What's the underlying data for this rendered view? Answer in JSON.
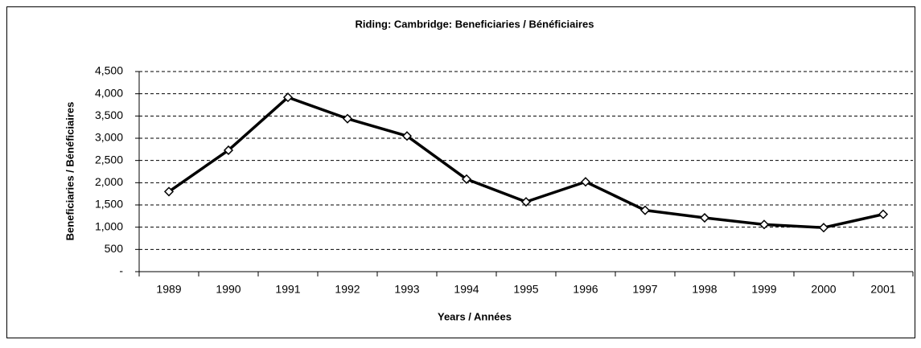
{
  "chart_data": {
    "type": "line",
    "title": "Riding:  Cambridge:  Beneficiaries / Bénéficiaires",
    "x_label": "Years / Années",
    "y_label": "Beneficiaries / Bénéficiaires",
    "categories": [
      "1989",
      "1990",
      "1991",
      "1992",
      "1993",
      "1994",
      "1995",
      "1996",
      "1997",
      "1998",
      "1999",
      "2000",
      "2001"
    ],
    "series": [
      {
        "name": "Beneficiaries / Bénéficiaires",
        "color": "#000000",
        "values": [
          1800,
          2730,
          3920,
          3440,
          3050,
          2080,
          1570,
          2020,
          1380,
          1210,
          1060,
          990,
          1290
        ]
      }
    ],
    "ylim": [
      0,
      4500
    ],
    "yticks": [
      {
        "value": 0,
        "label": "-"
      },
      500,
      {
        "value": 1000,
        "label": "1,000"
      },
      {
        "value": 1500,
        "label": "1,500"
      },
      {
        "value": 2000,
        "label": "2,000"
      },
      {
        "value": 2500,
        "label": "2,500"
      },
      {
        "value": 3000,
        "label": "3,000"
      },
      {
        "value": 3500,
        "label": "3,500"
      },
      {
        "value": 4000,
        "label": "4,000"
      },
      {
        "value": 4500,
        "label": "4,500"
      }
    ],
    "grid": true
  }
}
